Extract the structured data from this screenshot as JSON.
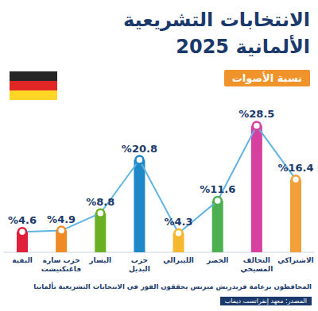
{
  "chart_data": {
    "type": "bar",
    "title": "الانتخابات التشريعية الألمانية 2025",
    "subtitle": "نسبة الأصوات",
    "annotations": [
      "المحافظون بزعامة فريدريش ميرتس يحققون الفوز في الانتخابات التشريعية بألمانيا",
      "المصدر: معهد إنفراتست ديماب"
    ],
    "categories": [
      "البقية",
      "حزب سارة فاغنكنيشت",
      "اليسار",
      "حزب البديل",
      "الليبرالي",
      "الخضر",
      "التحالف المسيحي",
      "الاشتراكي"
    ],
    "values": [
      4.6,
      4.9,
      8.8,
      20.8,
      4.3,
      11.6,
      28.5,
      16.4
    ],
    "value_labels": [
      "%4.6",
      "%4.9",
      "%8.8",
      "%20.8",
      "%4.3",
      "%11.6",
      "%28.5",
      "%16.4"
    ],
    "colors": [
      "#e0203a",
      "#f08a24",
      "#6ab023",
      "#1e88c8",
      "#f5b82e",
      "#4caf50",
      "#d6409f",
      "#f2a13a"
    ],
    "ylim": [
      0,
      30
    ],
    "yticks": [],
    "grid": false,
    "data_labels": true,
    "tick_labels": false
  }
}
